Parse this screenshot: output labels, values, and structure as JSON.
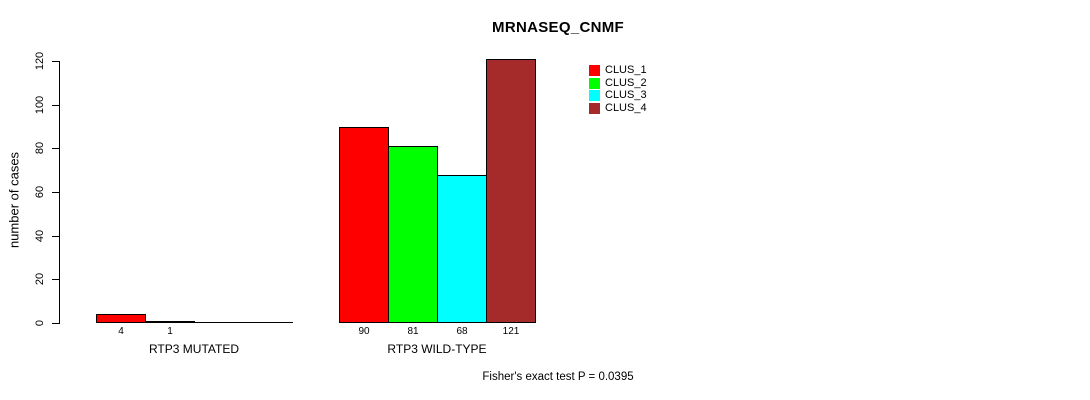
{
  "chart_data": {
    "type": "bar",
    "title": "MRNASEQ_CNMF",
    "ylabel": "number of cases",
    "xlabel": "",
    "ylim": [
      0,
      120
    ],
    "yticks": [
      0,
      20,
      40,
      60,
      80,
      100,
      120
    ],
    "grid": false,
    "legend_position": "top-right-inside",
    "categories": [
      "RTP3 MUTATED",
      "RTP3 WILD-TYPE"
    ],
    "series": [
      {
        "name": "CLUS_1",
        "color": "#FF0000",
        "values": [
          4,
          90
        ]
      },
      {
        "name": "CLUS_2",
        "color": "#00FF00",
        "values": [
          1,
          81
        ]
      },
      {
        "name": "CLUS_3",
        "color": "#00FFFF",
        "values": [
          0,
          68
        ]
      },
      {
        "name": "CLUS_4",
        "color": "#A52A2A",
        "values": [
          0,
          121
        ]
      }
    ],
    "bar_value_labels": [
      [
        "4",
        "1",
        "",
        ""
      ],
      [
        "90",
        "81",
        "68",
        "121"
      ]
    ],
    "annotation": "Fisher's exact test P = 0.0395"
  },
  "colors": {
    "axis": "#000000",
    "text": "#000000",
    "background": "#FFFFFF"
  }
}
